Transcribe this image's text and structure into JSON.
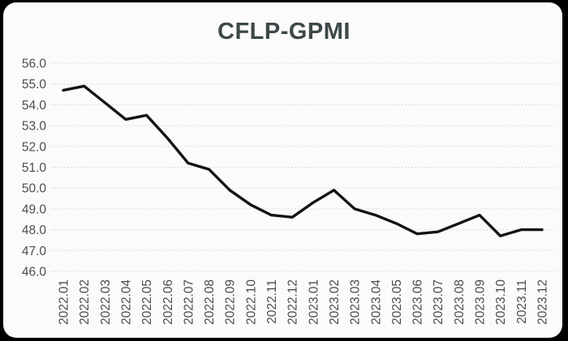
{
  "window": {
    "background_color": "#000000",
    "card_background_color": "#fbfbfa"
  },
  "chart_data": {
    "type": "line",
    "title": "CFLP-GPMI",
    "xlabel": "",
    "ylabel": "",
    "legend": "none",
    "grid": "horizontal-dotted",
    "ylim": [
      46,
      56
    ],
    "ytick_step": 1,
    "ytick_labels": [
      "56.0",
      "55.0",
      "54.0",
      "53.0",
      "52.0",
      "51.0",
      "50.0",
      "49.0",
      "48.0",
      "47.0",
      "46.0"
    ],
    "categories": [
      "2022.01",
      "2022.02",
      "2022.03",
      "2022.04",
      "2022.05",
      "2022.06",
      "2022.07",
      "2022.08",
      "2022.09",
      "2022.10",
      "2022.11",
      "2022.12",
      "2023.01",
      "2023.02",
      "2023.03",
      "2023.04",
      "2023.05",
      "2023.06",
      "2023.07",
      "2023.08",
      "2023.09",
      "2023.10",
      "2023.11",
      "2023.12"
    ],
    "series": [
      {
        "name": "CFLP-GPMI",
        "values": [
          54.7,
          54.9,
          54.1,
          53.3,
          53.5,
          52.4,
          51.2,
          50.9,
          49.9,
          49.2,
          48.7,
          48.6,
          49.3,
          49.9,
          49.0,
          48.7,
          48.3,
          47.8,
          47.9,
          48.3,
          48.7,
          47.7,
          48.0,
          48.0
        ]
      }
    ],
    "colors": {
      "line": "#141414",
      "grid": "#c3dcdc",
      "title": "#3d4849",
      "tick_labels": "#4d4d4d"
    }
  }
}
